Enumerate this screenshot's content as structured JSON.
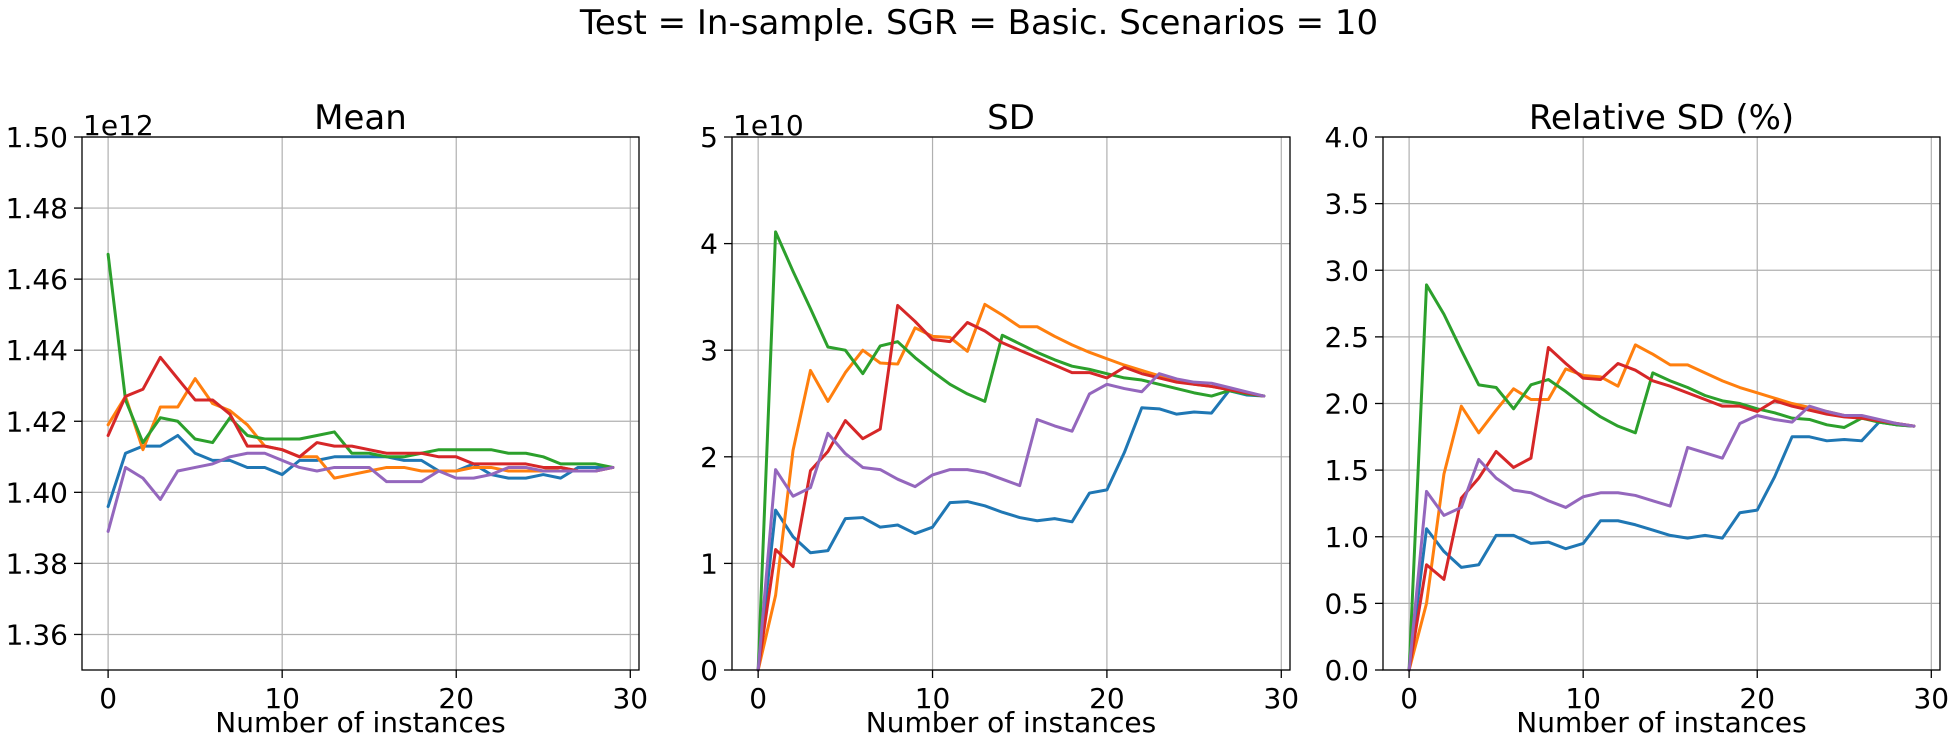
{
  "figure": {
    "suptitle": "Test = In-sample. SGR = Basic. Scenarios = 10"
  },
  "colors": {
    "blue": "#1f77b4",
    "orange": "#ff7f0e",
    "green": "#2ca02c",
    "red": "#d62728",
    "purple": "#9467bd",
    "grid": "#b0b0b0"
  },
  "chart_data": [
    {
      "type": "line",
      "title": "Mean",
      "xlabel": "Number of instances",
      "ylabel": "",
      "offset_text": "1e12",
      "xlim": [
        -1.5,
        30.5
      ],
      "ylim": [
        1.35,
        1.5
      ],
      "xticks": [
        0,
        10,
        20,
        30
      ],
      "xtick_labels": [
        "0",
        "10",
        "20",
        "30"
      ],
      "yticks": [
        1.36,
        1.38,
        1.4,
        1.42,
        1.44,
        1.46,
        1.48,
        1.5
      ],
      "ytick_labels": [
        "1.36",
        "1.38",
        "1.40",
        "1.42",
        "1.44",
        "1.46",
        "1.48",
        "1.50"
      ],
      "grid": true,
      "x": [
        0,
        1,
        2,
        3,
        4,
        5,
        6,
        7,
        8,
        9,
        10,
        11,
        12,
        13,
        14,
        15,
        16,
        17,
        18,
        19,
        20,
        21,
        22,
        23,
        24,
        25,
        26,
        27,
        28,
        29
      ],
      "series": [
        {
          "color": "blue",
          "values": [
            1.396,
            1.411,
            1.413,
            1.413,
            1.416,
            1.411,
            1.409,
            1.409,
            1.407,
            1.407,
            1.405,
            1.409,
            1.409,
            1.41,
            1.41,
            1.41,
            1.41,
            1.409,
            1.409,
            1.406,
            1.406,
            1.408,
            1.405,
            1.404,
            1.404,
            1.405,
            1.404,
            1.407,
            1.407,
            1.407
          ]
        },
        {
          "color": "orange",
          "values": [
            1.419,
            1.427,
            1.412,
            1.424,
            1.424,
            1.432,
            1.425,
            1.423,
            1.419,
            1.413,
            1.412,
            1.41,
            1.41,
            1.404,
            1.405,
            1.406,
            1.407,
            1.407,
            1.406,
            1.406,
            1.406,
            1.407,
            1.407,
            1.406,
            1.406,
            1.406,
            1.407,
            1.406,
            1.406,
            1.407
          ]
        },
        {
          "color": "green",
          "values": [
            1.467,
            1.426,
            1.414,
            1.421,
            1.42,
            1.415,
            1.414,
            1.421,
            1.416,
            1.415,
            1.415,
            1.415,
            1.416,
            1.417,
            1.411,
            1.411,
            1.41,
            1.41,
            1.411,
            1.412,
            1.412,
            1.412,
            1.412,
            1.411,
            1.411,
            1.41,
            1.408,
            1.408,
            1.408,
            1.407
          ]
        },
        {
          "color": "red",
          "values": [
            1.416,
            1.427,
            1.429,
            1.438,
            1.432,
            1.426,
            1.426,
            1.422,
            1.413,
            1.413,
            1.412,
            1.41,
            1.414,
            1.413,
            1.413,
            1.412,
            1.411,
            1.411,
            1.411,
            1.41,
            1.41,
            1.408,
            1.408,
            1.408,
            1.408,
            1.407,
            1.407,
            1.406,
            1.406,
            1.407
          ]
        },
        {
          "color": "purple",
          "values": [
            1.389,
            1.407,
            1.404,
            1.398,
            1.406,
            1.407,
            1.408,
            1.41,
            1.411,
            1.411,
            1.409,
            1.407,
            1.406,
            1.407,
            1.407,
            1.407,
            1.403,
            1.403,
            1.403,
            1.406,
            1.404,
            1.404,
            1.405,
            1.407,
            1.407,
            1.406,
            1.406,
            1.406,
            1.406,
            1.407
          ]
        }
      ]
    },
    {
      "type": "line",
      "title": "SD",
      "xlabel": "Number of instances",
      "ylabel": "",
      "offset_text": "1e10",
      "xlim": [
        -1.5,
        30.5
      ],
      "ylim": [
        0,
        5
      ],
      "xticks": [
        0,
        10,
        20,
        30
      ],
      "xtick_labels": [
        "0",
        "10",
        "20",
        "30"
      ],
      "yticks": [
        0,
        1,
        2,
        3,
        4,
        5
      ],
      "ytick_labels": [
        "0",
        "1",
        "2",
        "3",
        "4",
        "5"
      ],
      "grid": true,
      "x": [
        0,
        1,
        2,
        3,
        4,
        5,
        6,
        7,
        8,
        9,
        10,
        11,
        12,
        13,
        14,
        15,
        16,
        17,
        18,
        19,
        20,
        21,
        22,
        23,
        24,
        25,
        26,
        27,
        28,
        29
      ],
      "series": [
        {
          "color": "blue",
          "values": [
            0,
            1.5,
            1.25,
            1.1,
            1.12,
            1.42,
            1.43,
            1.34,
            1.36,
            1.28,
            1.34,
            1.57,
            1.58,
            1.54,
            1.48,
            1.43,
            1.4,
            1.42,
            1.39,
            1.66,
            1.69,
            2.04,
            2.46,
            2.45,
            2.4,
            2.42,
            2.41,
            2.62,
            2.58,
            2.57
          ]
        },
        {
          "color": "orange",
          "values": [
            0,
            0.7,
            2.06,
            2.81,
            2.52,
            2.79,
            3,
            2.88,
            2.87,
            3.21,
            3.13,
            3.12,
            2.99,
            3.43,
            3.33,
            3.22,
            3.22,
            3.13,
            3.05,
            2.98,
            2.92,
            2.86,
            2.81,
            2.76,
            2.72,
            2.68,
            2.66,
            2.63,
            2.6,
            2.57
          ]
        },
        {
          "color": "green",
          "values": [
            0,
            4.11,
            3.74,
            3.39,
            3.03,
            3,
            2.78,
            3.04,
            3.08,
            2.93,
            2.8,
            2.68,
            2.59,
            2.52,
            3.14,
            3.06,
            2.98,
            2.91,
            2.85,
            2.82,
            2.78,
            2.74,
            2.72,
            2.68,
            2.64,
            2.6,
            2.57,
            2.62,
            2.59,
            2.57
          ]
        },
        {
          "color": "red",
          "values": [
            0,
            1.13,
            0.97,
            1.87,
            2.05,
            2.34,
            2.17,
            2.26,
            3.42,
            3.27,
            3.1,
            3.08,
            3.26,
            3.18,
            3.07,
            3,
            2.93,
            2.86,
            2.79,
            2.79,
            2.74,
            2.84,
            2.78,
            2.74,
            2.7,
            2.68,
            2.66,
            2.63,
            2.6,
            2.57
          ]
        },
        {
          "color": "purple",
          "values": [
            0,
            1.88,
            1.63,
            1.71,
            2.22,
            2.03,
            1.9,
            1.88,
            1.79,
            1.72,
            1.83,
            1.88,
            1.88,
            1.85,
            1.79,
            1.73,
            2.35,
            2.29,
            2.24,
            2.59,
            2.68,
            2.64,
            2.61,
            2.78,
            2.73,
            2.7,
            2.69,
            2.65,
            2.61,
            2.57
          ]
        }
      ]
    },
    {
      "type": "line",
      "title": "Relative SD (%)",
      "xlabel": "Number of instances",
      "ylabel": "",
      "offset_text": "",
      "xlim": [
        -1.5,
        30.5
      ],
      "ylim": [
        0,
        4
      ],
      "xticks": [
        0,
        10,
        20,
        30
      ],
      "xtick_labels": [
        "0",
        "10",
        "20",
        "30"
      ],
      "yticks": [
        0,
        0.5,
        1,
        1.5,
        2,
        2.5,
        3,
        3.5,
        4
      ],
      "ytick_labels": [
        "0.0",
        "0.5",
        "1.0",
        "1.5",
        "2.0",
        "2.5",
        "3.0",
        "3.5",
        "4.0"
      ],
      "grid": true,
      "x": [
        0,
        1,
        2,
        3,
        4,
        5,
        6,
        7,
        8,
        9,
        10,
        11,
        12,
        13,
        14,
        15,
        16,
        17,
        18,
        19,
        20,
        21,
        22,
        23,
        24,
        25,
        26,
        27,
        28,
        29
      ],
      "series": [
        {
          "color": "blue",
          "values": [
            0,
            1.06,
            0.89,
            0.77,
            0.79,
            1.01,
            1.01,
            0.95,
            0.96,
            0.91,
            0.95,
            1.12,
            1.12,
            1.09,
            1.05,
            1.01,
            0.99,
            1.01,
            0.99,
            1.18,
            1.2,
            1.45,
            1.75,
            1.75,
            1.72,
            1.73,
            1.72,
            1.86,
            1.84,
            1.83
          ]
        },
        {
          "color": "orange",
          "values": [
            0,
            0.5,
            1.47,
            1.98,
            1.78,
            1.95,
            2.11,
            2.03,
            2.03,
            2.26,
            2.21,
            2.2,
            2.13,
            2.44,
            2.37,
            2.29,
            2.29,
            2.23,
            2.17,
            2.12,
            2.08,
            2.04,
            2,
            1.97,
            1.94,
            1.91,
            1.89,
            1.87,
            1.85,
            1.83
          ]
        },
        {
          "color": "green",
          "values": [
            0,
            2.89,
            2.67,
            2.4,
            2.14,
            2.12,
            1.96,
            2.14,
            2.18,
            2.09,
            1.99,
            1.9,
            1.83,
            1.78,
            2.23,
            2.17,
            2.12,
            2.06,
            2.02,
            2,
            1.96,
            1.93,
            1.89,
            1.88,
            1.84,
            1.82,
            1.89,
            1.86,
            1.84,
            1.83
          ]
        },
        {
          "color": "red",
          "values": [
            0,
            0.79,
            0.68,
            1.29,
            1.44,
            1.64,
            1.52,
            1.59,
            2.42,
            2.3,
            2.19,
            2.18,
            2.3,
            2.25,
            2.17,
            2.13,
            2.08,
            2.03,
            1.98,
            1.98,
            1.94,
            2.02,
            1.98,
            1.95,
            1.92,
            1.9,
            1.89,
            1.87,
            1.85,
            1.83
          ]
        },
        {
          "color": "purple",
          "values": [
            0,
            1.34,
            1.16,
            1.22,
            1.58,
            1.44,
            1.35,
            1.33,
            1.27,
            1.22,
            1.3,
            1.33,
            1.33,
            1.31,
            1.27,
            1.23,
            1.67,
            1.63,
            1.59,
            1.85,
            1.91,
            1.88,
            1.86,
            1.98,
            1.94,
            1.91,
            1.91,
            1.88,
            1.85,
            1.83
          ]
        }
      ]
    }
  ]
}
